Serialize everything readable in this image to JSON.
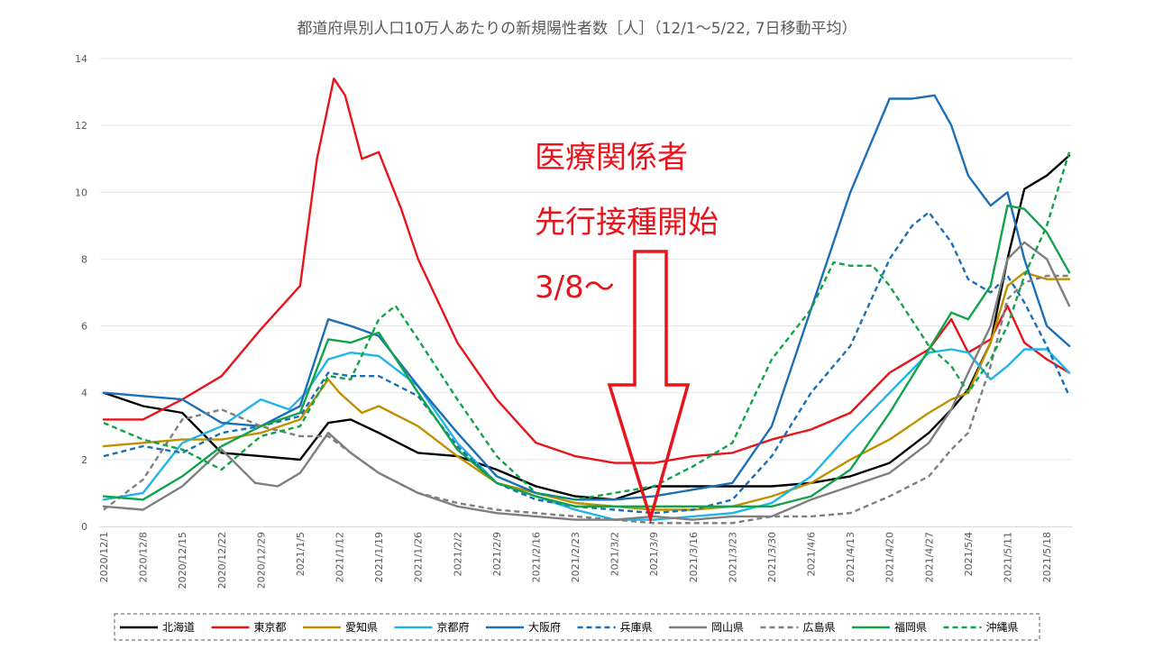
{
  "chart_data": {
    "type": "line",
    "title": "都道府県別人口10万人あたりの新規陽性者数［人］（12/1〜5/22, 7日移動平均）",
    "xlabel": "",
    "ylabel": "",
    "ylim": [
      0,
      14
    ],
    "yticks": [
      0,
      2,
      4,
      6,
      8,
      10,
      12,
      14
    ],
    "grid": "horizontal",
    "legend_position": "bottom",
    "x_start": "2020/12/1",
    "x_end": "2021/5/22",
    "x_tick_labels": [
      "2020/12/1",
      "2020/12/8",
      "2020/12/15",
      "2020/12/22",
      "2020/12/29",
      "2021/1/5",
      "2021/1/12",
      "2021/1/19",
      "2021/1/26",
      "2021/2/2",
      "2021/2/9",
      "2021/2/16",
      "2021/2/23",
      "2021/3/2",
      "2021/3/9",
      "2021/3/16",
      "2021/3/23",
      "2021/3/30",
      "2021/4/6",
      "2021/4/13",
      "2021/4/20",
      "2021/4/27",
      "2021/5/4",
      "2021/5/11",
      "2021/5/18"
    ],
    "series": [
      {
        "name": "北海道",
        "color": "#000000",
        "dash": false,
        "x": [
          "2020/12/1",
          "2020/12/8",
          "2020/12/15",
          "2020/12/22",
          "2020/12/29",
          "2021/1/5",
          "2021/1/10",
          "2021/1/14",
          "2021/1/19",
          "2021/1/26",
          "2021/2/2",
          "2021/2/9",
          "2021/2/16",
          "2021/2/23",
          "2021/3/2",
          "2021/3/9",
          "2021/3/16",
          "2021/3/23",
          "2021/3/30",
          "2021/4/6",
          "2021/4/13",
          "2021/4/20",
          "2021/4/27",
          "2021/5/1",
          "2021/5/4",
          "2021/5/8",
          "2021/5/11",
          "2021/5/14",
          "2021/5/18",
          "2021/5/22"
        ],
        "values": [
          4.0,
          3.6,
          3.4,
          2.2,
          2.1,
          2.0,
          3.1,
          3.2,
          2.8,
          2.2,
          2.1,
          1.7,
          1.2,
          0.9,
          0.8,
          1.2,
          1.2,
          1.2,
          1.2,
          1.3,
          1.5,
          1.9,
          2.8,
          3.5,
          4.1,
          5.5,
          8.0,
          10.1,
          10.5,
          11.1
        ]
      },
      {
        "name": "東京都",
        "color": "#e8141b",
        "dash": false,
        "x": [
          "2020/12/1",
          "2020/12/8",
          "2020/12/15",
          "2020/12/22",
          "2020/12/29",
          "2021/1/5",
          "2021/1/8",
          "2021/1/11",
          "2021/1/13",
          "2021/1/16",
          "2021/1/19",
          "2021/1/23",
          "2021/1/26",
          "2021/2/2",
          "2021/2/9",
          "2021/2/16",
          "2021/2/23",
          "2021/3/2",
          "2021/3/9",
          "2021/3/16",
          "2021/3/23",
          "2021/3/30",
          "2021/4/6",
          "2021/4/13",
          "2021/4/20",
          "2021/4/27",
          "2021/5/1",
          "2021/5/4",
          "2021/5/8",
          "2021/5/11",
          "2021/5/14",
          "2021/5/18",
          "2021/5/22"
        ],
        "values": [
          3.2,
          3.2,
          3.8,
          4.5,
          5.9,
          7.2,
          11.0,
          13.4,
          12.9,
          11.0,
          11.2,
          9.5,
          8.0,
          5.5,
          3.8,
          2.5,
          2.1,
          1.9,
          1.9,
          2.1,
          2.2,
          2.6,
          2.9,
          3.4,
          4.6,
          5.3,
          6.2,
          5.2,
          5.6,
          6.6,
          5.5,
          5.0,
          4.6
        ]
      },
      {
        "name": "愛知県",
        "color": "#bf9000",
        "dash": false,
        "x": [
          "2020/12/1",
          "2020/12/8",
          "2020/12/15",
          "2020/12/22",
          "2020/12/29",
          "2021/1/5",
          "2021/1/10",
          "2021/1/12",
          "2021/1/16",
          "2021/1/19",
          "2021/1/26",
          "2021/2/2",
          "2021/2/9",
          "2021/2/16",
          "2021/2/23",
          "2021/3/2",
          "2021/3/9",
          "2021/3/16",
          "2021/3/23",
          "2021/3/30",
          "2021/4/6",
          "2021/4/13",
          "2021/4/20",
          "2021/4/27",
          "2021/5/1",
          "2021/5/4",
          "2021/5/8",
          "2021/5/11",
          "2021/5/14",
          "2021/5/18",
          "2021/5/22"
        ],
        "values": [
          2.4,
          2.5,
          2.6,
          2.6,
          2.8,
          3.2,
          4.4,
          4.0,
          3.4,
          3.6,
          3.0,
          2.1,
          1.3,
          1.0,
          0.7,
          0.6,
          0.5,
          0.5,
          0.6,
          0.9,
          1.3,
          2.0,
          2.6,
          3.4,
          3.8,
          4.0,
          5.5,
          7.2,
          7.6,
          7.4,
          7.4
        ]
      },
      {
        "name": "京都府",
        "color": "#1fb5e9",
        "dash": false,
        "x": [
          "2020/12/1",
          "2020/12/8",
          "2020/12/15",
          "2020/12/22",
          "2020/12/29",
          "2021/1/3",
          "2021/1/6",
          "2021/1/10",
          "2021/1/14",
          "2021/1/19",
          "2021/1/26",
          "2021/2/2",
          "2021/2/9",
          "2021/2/16",
          "2021/2/23",
          "2021/3/2",
          "2021/3/9",
          "2021/3/16",
          "2021/3/23",
          "2021/3/30",
          "2021/4/6",
          "2021/4/13",
          "2021/4/20",
          "2021/4/27",
          "2021/5/1",
          "2021/5/4",
          "2021/5/8",
          "2021/5/11",
          "2021/5/14",
          "2021/5/18",
          "2021/5/22"
        ],
        "values": [
          0.8,
          1.0,
          2.5,
          3.0,
          3.8,
          3.5,
          4.0,
          5.0,
          5.2,
          5.1,
          4.2,
          2.5,
          1.3,
          0.9,
          0.5,
          0.2,
          0.2,
          0.3,
          0.4,
          0.7,
          1.5,
          2.8,
          4.0,
          5.2,
          5.3,
          5.2,
          4.4,
          4.8,
          5.3,
          5.3,
          4.6
        ]
      },
      {
        "name": "大阪府",
        "color": "#1b6fb6",
        "dash": false,
        "x": [
          "2020/12/1",
          "2020/12/8",
          "2020/12/15",
          "2020/12/22",
          "2020/12/29",
          "2021/1/5",
          "2021/1/10",
          "2021/1/14",
          "2021/1/19",
          "2021/1/26",
          "2021/2/2",
          "2021/2/9",
          "2021/2/16",
          "2021/2/23",
          "2021/3/2",
          "2021/3/9",
          "2021/3/16",
          "2021/3/23",
          "2021/3/30",
          "2021/4/6",
          "2021/4/13",
          "2021/4/20",
          "2021/4/24",
          "2021/4/28",
          "2021/5/1",
          "2021/5/4",
          "2021/5/8",
          "2021/5/11",
          "2021/5/14",
          "2021/5/18",
          "2021/5/22"
        ],
        "values": [
          4.0,
          3.9,
          3.8,
          3.1,
          3.0,
          3.6,
          6.2,
          6.0,
          5.7,
          4.2,
          2.8,
          1.5,
          1.0,
          0.8,
          0.8,
          0.9,
          1.1,
          1.3,
          3.0,
          6.5,
          10.0,
          12.8,
          12.8,
          12.9,
          12.0,
          10.5,
          9.6,
          10.0,
          8.0,
          6.0,
          5.4
        ]
      },
      {
        "name": "兵庫県",
        "color": "#1b6fb6",
        "dash": true,
        "x": [
          "2020/12/1",
          "2020/12/8",
          "2020/12/15",
          "2020/12/22",
          "2020/12/29",
          "2021/1/5",
          "2021/1/10",
          "2021/1/14",
          "2021/1/19",
          "2021/1/26",
          "2021/2/2",
          "2021/2/9",
          "2021/2/16",
          "2021/2/23",
          "2021/3/2",
          "2021/3/9",
          "2021/3/16",
          "2021/3/23",
          "2021/3/30",
          "2021/4/6",
          "2021/4/13",
          "2021/4/20",
          "2021/4/24",
          "2021/4/27",
          "2021/5/1",
          "2021/5/4",
          "2021/5/8",
          "2021/5/11",
          "2021/5/14",
          "2021/5/18",
          "2021/5/22"
        ],
        "values": [
          2.1,
          2.4,
          2.2,
          2.8,
          3.0,
          3.3,
          4.6,
          4.5,
          4.5,
          3.9,
          2.4,
          1.3,
          0.8,
          0.6,
          0.5,
          0.4,
          0.5,
          0.8,
          2.1,
          4.0,
          5.4,
          8.0,
          9.0,
          9.4,
          8.5,
          7.4,
          7.0,
          7.5,
          6.7,
          5.4,
          3.9
        ]
      },
      {
        "name": "岡山県",
        "color": "#7f7f7f",
        "dash": false,
        "x": [
          "2020/12/1",
          "2020/12/8",
          "2020/12/15",
          "2020/12/22",
          "2020/12/28",
          "2021/1/1",
          "2021/1/5",
          "2021/1/10",
          "2021/1/14",
          "2021/1/19",
          "2021/1/26",
          "2021/2/2",
          "2021/2/9",
          "2021/2/16",
          "2021/2/23",
          "2021/3/2",
          "2021/3/9",
          "2021/3/16",
          "2021/3/23",
          "2021/3/30",
          "2021/4/6",
          "2021/4/13",
          "2021/4/20",
          "2021/4/27",
          "2021/5/1",
          "2021/5/4",
          "2021/5/8",
          "2021/5/11",
          "2021/5/14",
          "2021/5/18",
          "2021/5/22"
        ],
        "values": [
          0.6,
          0.5,
          1.2,
          2.3,
          1.3,
          1.2,
          1.6,
          2.8,
          2.2,
          1.6,
          1.0,
          0.6,
          0.4,
          0.3,
          0.2,
          0.2,
          0.3,
          0.2,
          0.3,
          0.3,
          0.8,
          1.2,
          1.6,
          2.5,
          3.5,
          4.6,
          6.0,
          8.0,
          8.5,
          8.0,
          6.6
        ]
      },
      {
        "name": "広島県",
        "color": "#7f7f7f",
        "dash": true,
        "x": [
          "2020/12/1",
          "2020/12/8",
          "2020/12/15",
          "2020/12/22",
          "2020/12/29",
          "2021/1/5",
          "2021/1/10",
          "2021/1/14",
          "2021/1/19",
          "2021/1/26",
          "2021/2/2",
          "2021/2/9",
          "2021/2/16",
          "2021/2/23",
          "2021/3/2",
          "2021/3/9",
          "2021/3/16",
          "2021/3/23",
          "2021/3/30",
          "2021/4/6",
          "2021/4/13",
          "2021/4/20",
          "2021/4/27",
          "2021/5/1",
          "2021/5/4",
          "2021/5/8",
          "2021/5/11",
          "2021/5/14",
          "2021/5/18",
          "2021/5/22"
        ],
        "values": [
          0.5,
          1.4,
          3.2,
          3.5,
          3.0,
          2.7,
          2.7,
          2.2,
          1.6,
          1.0,
          0.7,
          0.5,
          0.4,
          0.3,
          0.2,
          0.1,
          0.1,
          0.1,
          0.3,
          0.3,
          0.4,
          0.9,
          1.5,
          2.3,
          2.8,
          4.8,
          6.8,
          7.3,
          7.5,
          7.5
        ]
      },
      {
        "name": "福岡県",
        "color": "#12a34a",
        "dash": false,
        "x": [
          "2020/12/1",
          "2020/12/8",
          "2020/12/15",
          "2020/12/22",
          "2020/12/29",
          "2021/1/5",
          "2021/1/10",
          "2021/1/14",
          "2021/1/19",
          "2021/1/26",
          "2021/2/2",
          "2021/2/9",
          "2021/2/16",
          "2021/2/23",
          "2021/3/2",
          "2021/3/9",
          "2021/3/16",
          "2021/3/23",
          "2021/3/30",
          "2021/4/6",
          "2021/4/13",
          "2021/4/20",
          "2021/4/27",
          "2021/5/1",
          "2021/5/4",
          "2021/5/8",
          "2021/5/11",
          "2021/5/14",
          "2021/5/18",
          "2021/5/22"
        ],
        "values": [
          0.9,
          0.8,
          1.5,
          2.4,
          3.0,
          3.4,
          5.6,
          5.5,
          5.8,
          4.0,
          2.3,
          1.3,
          0.9,
          0.6,
          0.6,
          0.6,
          0.6,
          0.6,
          0.6,
          0.9,
          1.7,
          3.4,
          5.3,
          6.4,
          6.2,
          7.2,
          9.6,
          9.5,
          8.8,
          7.6
        ]
      },
      {
        "name": "沖縄県",
        "color": "#12a34a",
        "dash": true,
        "x": [
          "2020/12/1",
          "2020/12/8",
          "2020/12/15",
          "2020/12/22",
          "2020/12/29",
          "2021/1/5",
          "2021/1/10",
          "2021/1/14",
          "2021/1/19",
          "2021/1/22",
          "2021/1/26",
          "2021/2/2",
          "2021/2/9",
          "2021/2/16",
          "2021/2/23",
          "2021/3/2",
          "2021/3/9",
          "2021/3/16",
          "2021/3/23",
          "2021/3/30",
          "2021/4/6",
          "2021/4/10",
          "2021/4/13",
          "2021/4/17",
          "2021/4/20",
          "2021/4/27",
          "2021/5/1",
          "2021/5/4",
          "2021/5/8",
          "2021/5/11",
          "2021/5/14",
          "2021/5/18",
          "2021/5/22"
        ],
        "values": [
          3.1,
          2.6,
          2.3,
          1.7,
          2.7,
          3.0,
          4.5,
          4.4,
          6.2,
          6.6,
          5.6,
          3.8,
          2.1,
          1.0,
          0.8,
          1.0,
          1.2,
          1.8,
          2.5,
          5.0,
          6.5,
          7.9,
          7.8,
          7.8,
          7.2,
          5.4,
          4.8,
          4.0,
          5.0,
          6.0,
          7.5,
          9.0,
          11.2
        ]
      }
    ]
  },
  "annotation": {
    "lines": [
      "医療関係者",
      "先行接種開始",
      "3/8〜"
    ]
  }
}
